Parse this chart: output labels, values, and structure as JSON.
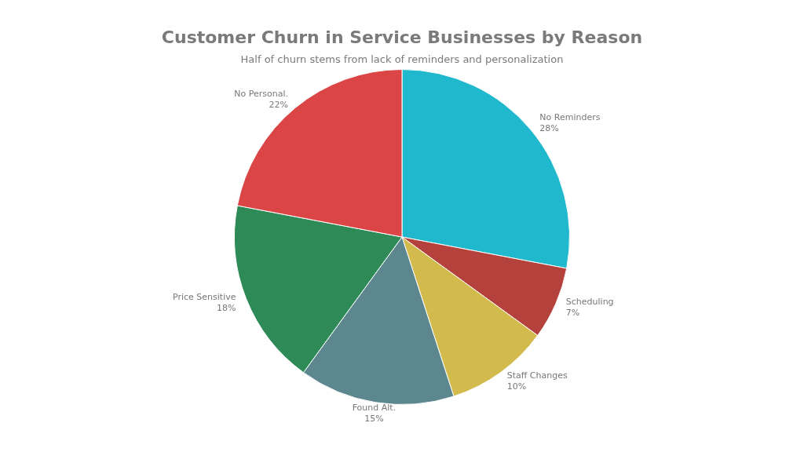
{
  "chart_data": {
    "type": "pie",
    "title": "Customer Churn in Service Businesses by Reason",
    "subtitle": "Half of churn stems from lack of reminders and personalization",
    "categories": [
      "No Reminders",
      "Scheduling",
      "Staff Changes",
      "Found Alt.",
      "Price Sensitive",
      "No Personal."
    ],
    "values": [
      28,
      7,
      10,
      15,
      18,
      22
    ],
    "colors": [
      "#1fb8cd",
      "#b4413c",
      "#d2ba4c",
      "#5d878f",
      "#2e8b57",
      "#db4545"
    ],
    "value_labels": [
      "28%",
      "7%",
      "10%",
      "15%",
      "18%",
      "22%"
    ],
    "legend": false
  }
}
